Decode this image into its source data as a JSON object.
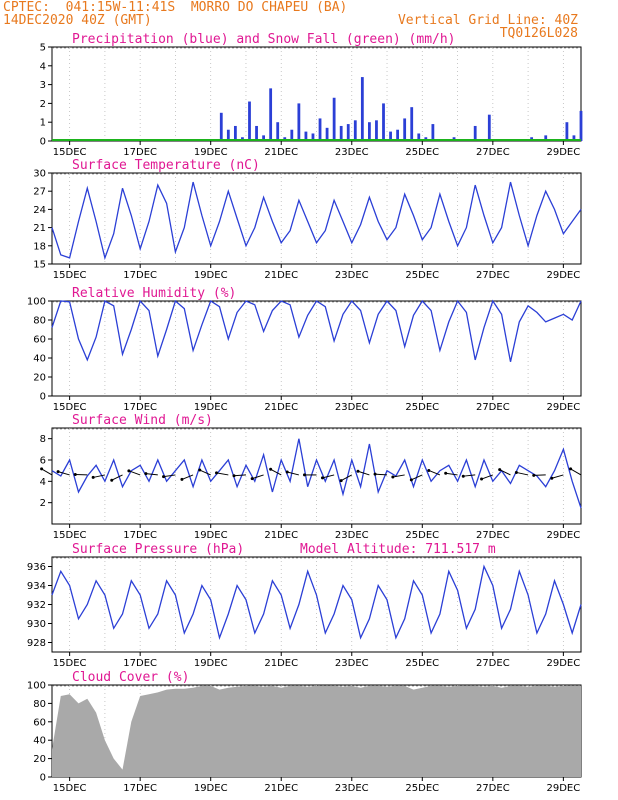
{
  "header": {
    "line1_left": "CPTEC:  041:15W-11:41S  MORRO DO CHAPEU (BA)",
    "line2_left": "14DEC2020 40Z (GMT)",
    "line1_right": "Vertical Grid Line: 40Z",
    "line2_right": "TQ0126L028"
  },
  "date_ticks": [
    "15DEC",
    "17DEC",
    "19DEC",
    "21DEC",
    "23DEC",
    "25DEC",
    "27DEC",
    "29DEC"
  ],
  "colors": {
    "line": "#2b3fd6",
    "snow": "#1bb31b",
    "title": "#e01893",
    "header": "#e8791e",
    "cloud": "#a9a9a9"
  },
  "chart_data": [
    {
      "type": "bar",
      "id": "precip",
      "title": "Precipitation (blue) and Snow Fall (green) (mm/h)",
      "ylim": [
        0,
        5
      ],
      "yticks": [
        "0",
        "1",
        "2",
        "3",
        "4",
        "5"
      ],
      "series": [
        {
          "name": "Precipitation",
          "x_days": [
            0.0,
            4.0,
            4.2,
            4.4,
            4.6,
            4.8,
            5.0,
            5.2,
            5.4,
            5.6,
            5.8,
            6.0,
            6.2,
            6.4,
            6.6,
            6.8,
            7.0,
            7.2,
            7.4,
            7.6,
            7.8,
            8.0,
            8.2,
            8.4,
            8.6,
            8.8,
            9.0,
            9.2,
            9.4,
            9.6,
            9.8,
            10.0,
            10.2,
            10.4,
            10.6,
            10.8,
            11.0,
            11.2,
            11.4,
            11.6,
            11.8,
            12.0,
            12.2,
            12.4,
            12.6,
            12.8,
            13.0,
            13.2,
            13.4,
            13.6,
            13.8,
            14.0,
            14.2,
            14.4,
            14.6,
            14.8,
            15.0
          ],
          "values": [
            0,
            0,
            0.1,
            0,
            0.1,
            1.5,
            0.6,
            0.8,
            0.2,
            2.1,
            0.8,
            0.3,
            2.8,
            1.0,
            0.2,
            0.6,
            2.0,
            0.5,
            0.4,
            1.2,
            0.7,
            2.3,
            0.8,
            0.9,
            1.1,
            3.4,
            1.0,
            1.1,
            2.0,
            0.5,
            0.6,
            1.2,
            1.8,
            0.4,
            0.2,
            0.9,
            0.1,
            0.0,
            0.2,
            0.0,
            0.1,
            0.8,
            0.1,
            1.4,
            0.1,
            0.0,
            0.0,
            0.0,
            0.0,
            0.2,
            0.1,
            0.3,
            0.0,
            0.0,
            1.0,
            0.3,
            1.6
          ]
        }
      ]
    },
    {
      "type": "line",
      "id": "temp",
      "title": "Surface Temperature (nC)",
      "ylim": [
        15,
        30
      ],
      "yticks": [
        "15",
        "18",
        "21",
        "24",
        "27",
        "30"
      ],
      "series": [
        {
          "name": "Temperature",
          "x_days": [
            0,
            0.25,
            0.5,
            0.75,
            1,
            1.25,
            1.5,
            1.75,
            2,
            2.25,
            2.5,
            2.75,
            3,
            3.25,
            3.5,
            3.75,
            4,
            4.25,
            4.5,
            4.75,
            5,
            5.25,
            5.5,
            5.75,
            6,
            6.25,
            6.5,
            6.75,
            7,
            7.25,
            7.5,
            7.75,
            8,
            8.25,
            8.5,
            8.75,
            9,
            9.25,
            9.5,
            9.75,
            10,
            10.25,
            10.5,
            10.75,
            11,
            11.25,
            11.5,
            11.75,
            12,
            12.25,
            12.5,
            12.75,
            13,
            13.25,
            13.5,
            13.75,
            14,
            14.25,
            14.5,
            14.75,
            15
          ],
          "values": [
            21,
            16.5,
            16,
            22,
            27.5,
            22,
            16,
            20,
            27.5,
            23,
            17.5,
            22,
            28,
            25,
            17,
            21,
            28.5,
            23,
            18,
            22,
            27,
            22.5,
            18,
            21,
            26,
            22,
            18.5,
            20.5,
            25.5,
            22,
            18.5,
            20.5,
            25.5,
            22,
            18.5,
            21.5,
            26,
            22,
            19,
            21,
            26.5,
            23,
            19,
            21,
            26.5,
            22,
            18,
            21,
            28,
            23,
            18.5,
            21,
            28.5,
            23,
            18,
            23,
            27,
            24,
            20,
            22,
            24
          ]
        }
      ]
    },
    {
      "type": "line",
      "id": "rh",
      "title": "Relative Humidity (%)",
      "ylim": [
        0,
        100
      ],
      "yticks": [
        "0",
        "20",
        "40",
        "60",
        "80",
        "100"
      ],
      "series": [
        {
          "name": "Relative Humidity",
          "x_days": [
            0,
            0.25,
            0.5,
            0.75,
            1,
            1.25,
            1.5,
            1.75,
            2,
            2.25,
            2.5,
            2.75,
            3,
            3.25,
            3.5,
            3.75,
            4,
            4.25,
            4.5,
            4.75,
            5,
            5.25,
            5.5,
            5.75,
            6,
            6.25,
            6.5,
            6.75,
            7,
            7.25,
            7.5,
            7.75,
            8,
            8.25,
            8.5,
            8.75,
            9,
            9.25,
            9.5,
            9.75,
            10,
            10.25,
            10.5,
            10.75,
            11,
            11.25,
            11.5,
            11.75,
            12,
            12.25,
            12.5,
            12.75,
            13,
            13.25,
            13.5,
            13.75,
            14,
            14.25,
            14.5,
            14.75,
            15
          ],
          "values": [
            72,
            100,
            99,
            60,
            38,
            62,
            100,
            95,
            44,
            70,
            100,
            90,
            42,
            70,
            100,
            92,
            48,
            75,
            100,
            94,
            60,
            88,
            100,
            96,
            68,
            90,
            100,
            96,
            62,
            85,
            100,
            94,
            58,
            86,
            100,
            90,
            56,
            86,
            100,
            90,
            52,
            85,
            100,
            90,
            48,
            78,
            100,
            88,
            38,
            72,
            100,
            86,
            36,
            78,
            95,
            88,
            78,
            82,
            86,
            80,
            100
          ]
        }
      ]
    },
    {
      "type": "line",
      "id": "wind",
      "title": "Surface Wind (m/s)",
      "ylim": [
        0,
        9
      ],
      "yticks": [
        "2",
        "4",
        "6",
        "8"
      ],
      "series": [
        {
          "name": "Wind Speed",
          "x_days": [
            0,
            0.25,
            0.5,
            0.75,
            1,
            1.25,
            1.5,
            1.75,
            2,
            2.25,
            2.5,
            2.75,
            3,
            3.25,
            3.5,
            3.75,
            4,
            4.25,
            4.5,
            4.75,
            5,
            5.25,
            5.5,
            5.75,
            6,
            6.25,
            6.5,
            6.75,
            7,
            7.25,
            7.5,
            7.75,
            8,
            8.25,
            8.5,
            8.75,
            9,
            9.25,
            9.5,
            9.75,
            10,
            10.25,
            10.5,
            10.75,
            11,
            11.25,
            11.5,
            11.75,
            12,
            12.25,
            12.5,
            12.75,
            13,
            13.25,
            13.5,
            13.75,
            14,
            14.25,
            14.5,
            14.75,
            15
          ],
          "values": [
            5,
            4.5,
            6,
            3,
            4.5,
            5.5,
            4,
            6,
            3.5,
            5,
            5.5,
            4,
            6,
            4,
            5,
            6,
            3.5,
            6,
            4,
            5,
            6,
            3.5,
            5.5,
            4,
            6.5,
            3,
            6,
            4,
            8,
            3.5,
            6,
            4,
            6,
            2.8,
            6,
            3.5,
            7.5,
            3,
            5,
            4.5,
            6,
            3.5,
            6,
            4,
            5,
            5.5,
            4,
            6,
            3.5,
            6,
            4,
            5,
            3.8,
            5.5,
            5,
            4.5,
            3.5,
            5,
            7,
            4,
            1.5
          ]
        }
      ]
    },
    {
      "type": "line",
      "id": "pressure",
      "title": "Surface Pressure (hPa)",
      "annotation": "Model Altitude: 711.517 m",
      "ylim": [
        927,
        937
      ],
      "yticks": [
        "928",
        "930",
        "932",
        "934",
        "936"
      ],
      "series": [
        {
          "name": "Pressure",
          "x_days": [
            0,
            0.25,
            0.5,
            0.75,
            1,
            1.25,
            1.5,
            1.75,
            2,
            2.25,
            2.5,
            2.75,
            3,
            3.25,
            3.5,
            3.75,
            4,
            4.25,
            4.5,
            4.75,
            5,
            5.25,
            5.5,
            5.75,
            6,
            6.25,
            6.5,
            6.75,
            7,
            7.25,
            7.5,
            7.75,
            8,
            8.25,
            8.5,
            8.75,
            9,
            9.25,
            9.5,
            9.75,
            10,
            10.25,
            10.5,
            10.75,
            11,
            11.25,
            11.5,
            11.75,
            12,
            12.25,
            12.5,
            12.75,
            13,
            13.25,
            13.5,
            13.75,
            14,
            14.25,
            14.5,
            14.75,
            15
          ],
          "values": [
            933,
            935.5,
            934,
            930.5,
            932,
            934.5,
            933,
            929.5,
            931,
            934.5,
            933,
            929.5,
            931,
            934.5,
            933,
            929,
            931,
            934,
            932.5,
            928.5,
            931,
            934,
            932.5,
            929,
            931,
            934.5,
            933,
            929.5,
            932,
            935.5,
            933,
            929,
            931,
            934,
            932.5,
            928.5,
            930.5,
            934,
            932.5,
            928.5,
            930.5,
            934.5,
            933,
            929,
            931,
            935.5,
            933.5,
            929.5,
            931.5,
            936,
            934,
            929.5,
            931.5,
            935.5,
            933,
            929,
            931,
            934.5,
            932,
            929,
            932
          ]
        }
      ]
    },
    {
      "type": "area",
      "id": "cloud",
      "title": "Cloud Cover (%)",
      "ylim": [
        0,
        100
      ],
      "yticks": [
        "0",
        "20",
        "40",
        "60",
        "80",
        "100"
      ],
      "series": [
        {
          "name": "Cloud Cover",
          "x_days": [
            0,
            0.25,
            0.5,
            0.75,
            1,
            1.25,
            1.5,
            1.75,
            2,
            2.25,
            2.5,
            2.75,
            3,
            3.25,
            3.5,
            3.75,
            4,
            4.25,
            4.5,
            4.75,
            5,
            5.25,
            5.5,
            5.75,
            6,
            6.25,
            6.5,
            6.75,
            7,
            7.25,
            7.5,
            7.75,
            8,
            8.25,
            8.5,
            8.75,
            9,
            9.25,
            9.5,
            9.75,
            10,
            10.25,
            10.5,
            10.75,
            11,
            11.25,
            11.5,
            11.75,
            12,
            12.25,
            12.5,
            12.75,
            13,
            13.25,
            13.5,
            13.75,
            14,
            14.25,
            14.5,
            14.75,
            15
          ],
          "values": [
            30,
            88,
            90,
            80,
            85,
            70,
            40,
            20,
            8,
            60,
            88,
            90,
            92,
            95,
            96,
            96,
            97,
            99,
            99,
            95,
            97,
            98,
            99,
            99,
            98,
            99,
            97,
            99,
            99,
            98,
            99,
            99,
            99,
            98,
            99,
            97,
            99,
            99,
            98,
            99,
            99,
            95,
            97,
            99,
            99,
            98,
            99,
            99,
            99,
            98,
            99,
            97,
            99,
            99,
            98,
            99,
            99,
            98,
            99,
            99,
            99
          ]
        }
      ]
    }
  ]
}
